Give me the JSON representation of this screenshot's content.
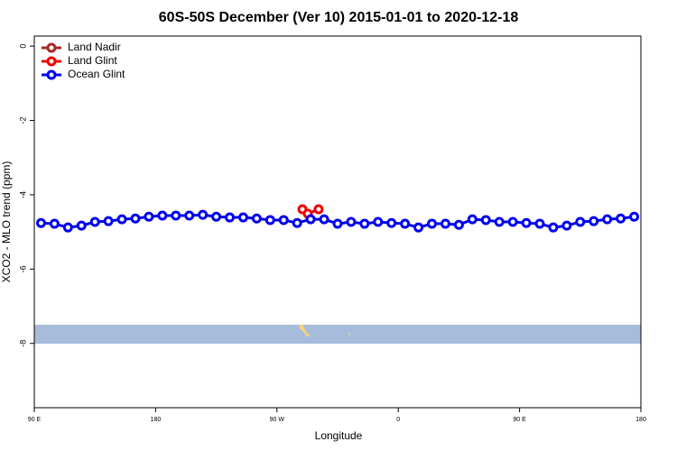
{
  "chart_data": {
    "type": "line",
    "title": "60S-50S December (Ver 10)   2015-01-01 to 2020-12-18",
    "xlabel": "Longitude",
    "ylabel": "XCO2 - MLO trend (ppm)",
    "xlim": [
      90,
      540
    ],
    "xticks": [
      {
        "value": 90,
        "label": "90 E"
      },
      {
        "value": 180,
        "label": "180"
      },
      {
        "value": 270,
        "label": "90 W"
      },
      {
        "value": 360,
        "label": "0"
      },
      {
        "value": 450,
        "label": "90 E"
      },
      {
        "value": 540,
        "label": "180"
      }
    ],
    "ylim": [
      -9.73,
      0.27
    ],
    "yticks": [
      0,
      -2,
      -4,
      -6,
      -8
    ],
    "legend": "top-left",
    "series": [
      {
        "name": "Land Nadir",
        "color": "#a52a2a",
        "x": [],
        "values": []
      },
      {
        "name": "Land Glint",
        "color": "#ee0000",
        "x": [
          288.9,
          292.9,
          300.9
        ],
        "values": [
          -4.39,
          -4.51,
          -4.39
        ]
      },
      {
        "name": "Ocean Glint",
        "color": "#0000ee",
        "x": [
          95,
          105,
          115,
          125,
          135,
          145,
          155,
          165,
          175,
          185,
          195,
          205,
          215,
          225,
          235,
          245,
          255,
          265,
          275,
          285,
          295,
          305,
          315,
          325,
          335,
          345,
          355,
          365,
          375,
          385,
          395,
          405,
          415,
          425,
          435,
          445,
          455,
          465,
          475,
          485,
          495,
          505,
          515,
          525,
          535
        ],
        "values": [
          -4.76,
          -4.78,
          -4.88,
          -4.83,
          -4.73,
          -4.71,
          -4.66,
          -4.64,
          -4.59,
          -4.56,
          -4.56,
          -4.56,
          -4.54,
          -4.59,
          -4.61,
          -4.61,
          -4.64,
          -4.68,
          -4.68,
          -4.76,
          -4.66,
          -4.66,
          -4.78,
          -4.73,
          -4.78,
          -4.73,
          -4.76,
          -4.78,
          -4.88,
          -4.78,
          -4.78,
          -4.81,
          -4.66,
          -4.68,
          -4.73,
          -4.73,
          -4.76,
          -4.78,
          -4.88,
          -4.83,
          -4.73,
          -4.71,
          -4.66,
          -4.64,
          -4.59
        ]
      }
    ]
  }
}
